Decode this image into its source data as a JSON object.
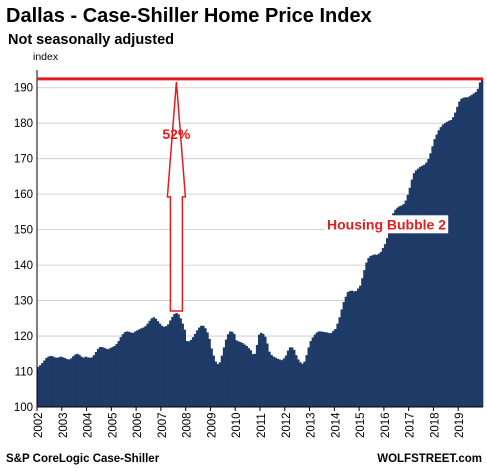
{
  "chart_data": {
    "type": "bar",
    "title": "Dallas - Case-Shiller Home Price Index",
    "subtitle": "Not seasonally adjusted",
    "ylabel": "index",
    "ylim": [
      100,
      195
    ],
    "yticks": [
      100,
      110,
      120,
      130,
      140,
      150,
      160,
      170,
      180,
      190
    ],
    "xticks": [
      "2002",
      "2003",
      "2004",
      "2005",
      "2006",
      "2007",
      "2008",
      "2009",
      "2010",
      "2011",
      "2012",
      "2013",
      "2014",
      "2015",
      "2016",
      "2017",
      "2018",
      "2019"
    ],
    "grid": true,
    "bar_color": "#1f3a66",
    "accent_color": "#e31d1d",
    "annotations": {
      "percent": "52%",
      "bubble": "Housing Bubble 2"
    },
    "source_left": "S&P CoreLogic Case-Shiller",
    "source_right": "WOLFSTREET.com",
    "x_start": "2002-01",
    "values": [
      111.3,
      111.8,
      112.4,
      113.1,
      113.8,
      114.2,
      114.4,
      114.3,
      114.0,
      113.9,
      114.0,
      114.2,
      114.0,
      113.8,
      113.5,
      113.4,
      113.7,
      114.3,
      114.8,
      115.0,
      114.7,
      114.2,
      113.9,
      114.2,
      114.0,
      113.9,
      114.0,
      114.6,
      115.5,
      116.4,
      116.9,
      116.9,
      116.7,
      116.4,
      116.3,
      116.6,
      116.9,
      117.2,
      117.8,
      118.6,
      119.7,
      120.5,
      121.1,
      121.3,
      121.2,
      121.0,
      120.9,
      121.3,
      121.6,
      121.9,
      122.2,
      122.4,
      122.8,
      123.5,
      124.3,
      125.0,
      125.3,
      124.9,
      124.2,
      123.5,
      122.9,
      122.6,
      122.8,
      123.3,
      124.4,
      125.4,
      126.2,
      126.5,
      126.1,
      125.0,
      123.5,
      121.8,
      118.6,
      118.5,
      118.9,
      119.7,
      120.6,
      121.6,
      122.4,
      122.9,
      122.9,
      122.2,
      121.0,
      119.2,
      116.5,
      114.5,
      112.8,
      112.1,
      112.6,
      114.5,
      116.8,
      119.0,
      120.5,
      121.3,
      121.2,
      120.6,
      118.8,
      118.5,
      118.3,
      118.0,
      117.6,
      117.2,
      116.6,
      116.0,
      114.9,
      115.0,
      117.5,
      120.4,
      120.9,
      120.6,
      119.8,
      117.9,
      115.6,
      114.7,
      114.2,
      113.9,
      113.6,
      113.4,
      113.2,
      113.7,
      114.5,
      115.9,
      116.8,
      116.8,
      116.1,
      114.6,
      113.4,
      112.6,
      112.2,
      112.8,
      114.6,
      116.8,
      118.6,
      119.6,
      120.4,
      121.0,
      121.3,
      121.3,
      121.2,
      121.1,
      121.0,
      120.8,
      120.9,
      121.5,
      122.0,
      123.5,
      125.3,
      127.5,
      129.6,
      131.1,
      132.4,
      132.7,
      132.8,
      132.6,
      132.7,
      133.4,
      134.2,
      136.3,
      138.6,
      140.7,
      142.0,
      142.6,
      142.8,
      143.0,
      142.9,
      143.2,
      143.7,
      144.8,
      145.9,
      147.6,
      149.8,
      152.3,
      154.6,
      155.6,
      156.2,
      156.6,
      156.8,
      157.2,
      158.2,
      159.8,
      161.8,
      164.1,
      165.9,
      166.7,
      167.2,
      167.7,
      168.0,
      168.3,
      168.9,
      169.9,
      171.5,
      173.5,
      175.5,
      176.8,
      178.0,
      178.9,
      179.6,
      180.0,
      180.4,
      180.7,
      180.9,
      181.7,
      183.0,
      184.6,
      186.1,
      186.9,
      187.2,
      187.3,
      187.3,
      187.6,
      188.0,
      188.4,
      188.8,
      189.7,
      191.5,
      192.5
    ]
  }
}
